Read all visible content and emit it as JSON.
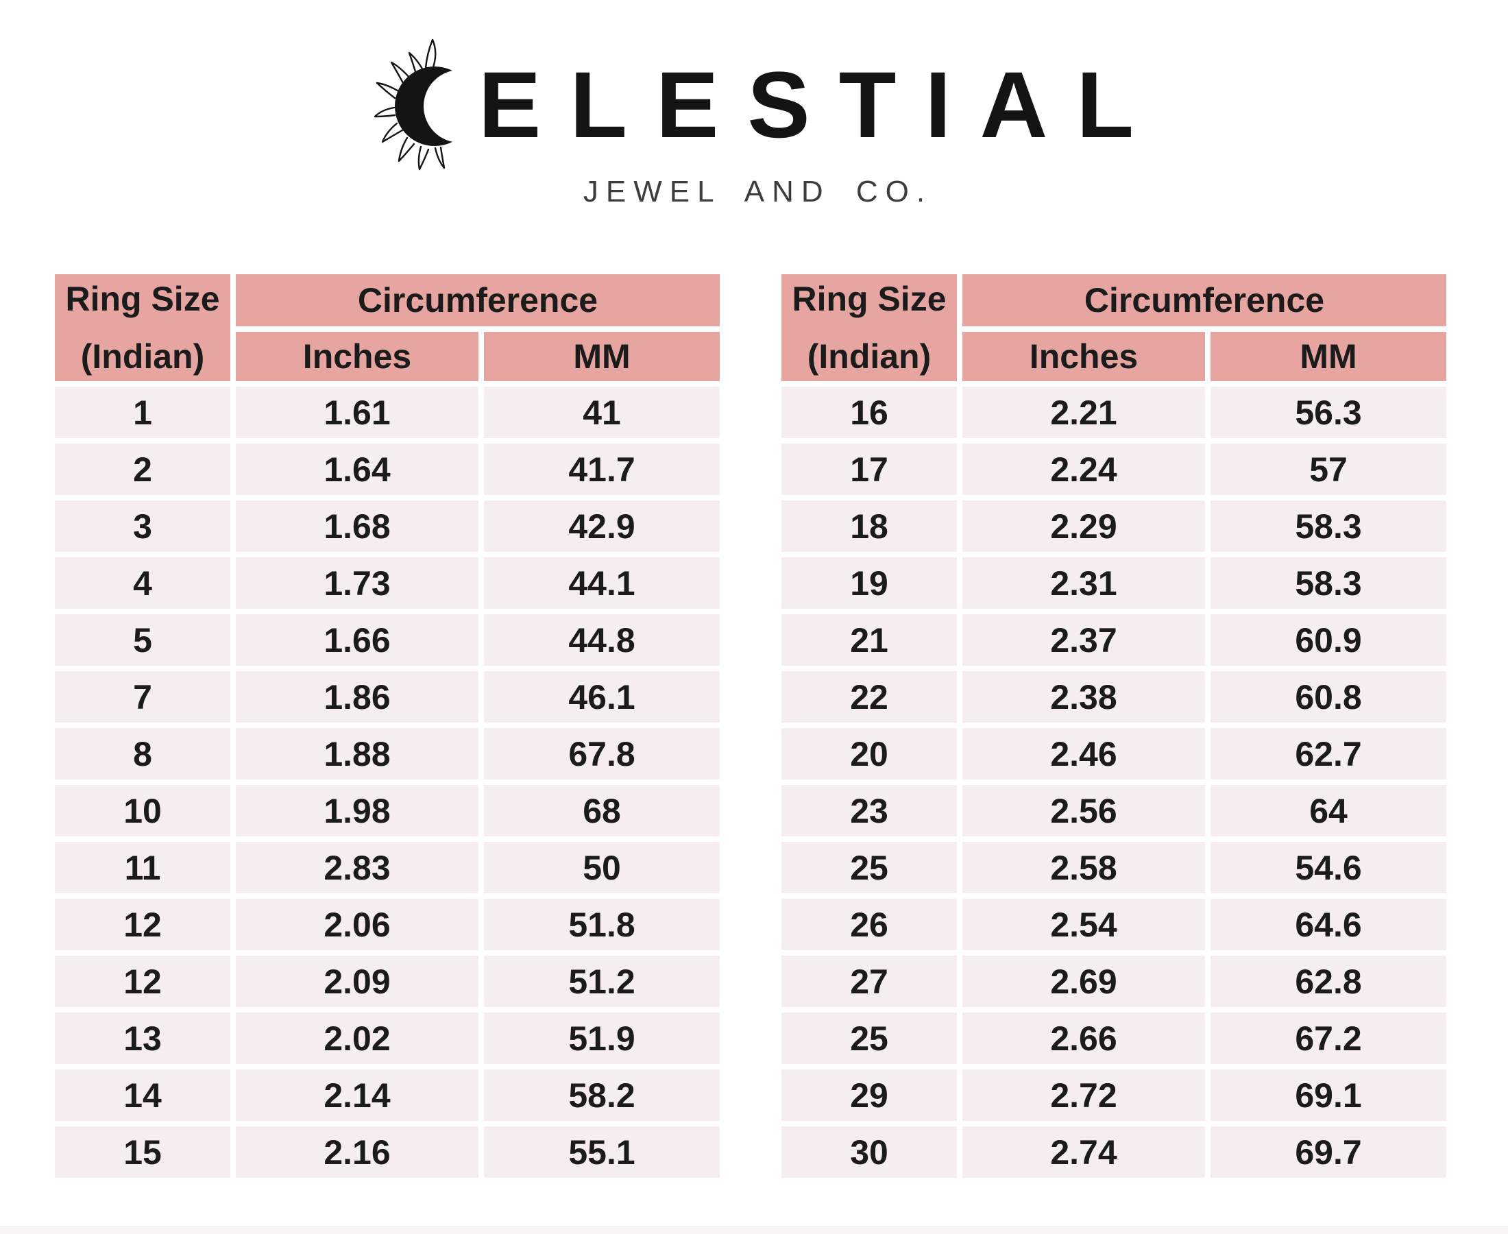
{
  "brand": {
    "wordmark": "CELESTIAL",
    "wordmark_visible_letters": "ELESTIAL",
    "tagline": "JEWEL AND CO.",
    "icon": "sun-crescent-icon",
    "wordmark_color": "#141414",
    "tagline_color": "#3d3d3d"
  },
  "colors": {
    "header_pink": "#e7a5a2",
    "row_pink": "#f6eeee",
    "separator_white": "#ffffff",
    "text_dark": "#1b1b1b"
  },
  "tables": {
    "headers": {
      "ring_size_line1": "Ring Size",
      "ring_size_line2": "(Indian)",
      "circumference": "Circumference",
      "inches": "Inches",
      "mm": "MM"
    },
    "left": {
      "rows": [
        [
          "1",
          "1.61",
          "41"
        ],
        [
          "2",
          "1.64",
          "41.7"
        ],
        [
          "3",
          "1.68",
          "42.9"
        ],
        [
          "4",
          "1.73",
          "44.1"
        ],
        [
          "5",
          "1.66",
          "44.8"
        ],
        [
          "7",
          "1.86",
          "46.1"
        ],
        [
          "8",
          "1.88",
          "67.8"
        ],
        [
          "10",
          "1.98",
          "68"
        ],
        [
          "11",
          "2.83",
          "50"
        ],
        [
          "12",
          "2.06",
          "51.8"
        ],
        [
          "12",
          "2.09",
          "51.2"
        ],
        [
          "13",
          "2.02",
          "51.9"
        ],
        [
          "14",
          "2.14",
          "58.2"
        ],
        [
          "15",
          "2.16",
          "55.1"
        ]
      ]
    },
    "right": {
      "rows": [
        [
          "16",
          "2.21",
          "56.3"
        ],
        [
          "17",
          "2.24",
          "57"
        ],
        [
          "18",
          "2.29",
          "58.3"
        ],
        [
          "19",
          "2.31",
          "58.3"
        ],
        [
          "21",
          "2.37",
          "60.9"
        ],
        [
          "22",
          "2.38",
          "60.8"
        ],
        [
          "20",
          "2.46",
          "62.7"
        ],
        [
          "23",
          "2.56",
          "64"
        ],
        [
          "25",
          "2.58",
          "54.6"
        ],
        [
          "26",
          "2.54",
          "64.6"
        ],
        [
          "27",
          "2.69",
          "62.8"
        ],
        [
          "25",
          "2.66",
          "67.2"
        ],
        [
          "29",
          "2.72",
          "69.1"
        ],
        [
          "30",
          "2.74",
          "69.7"
        ]
      ]
    }
  }
}
